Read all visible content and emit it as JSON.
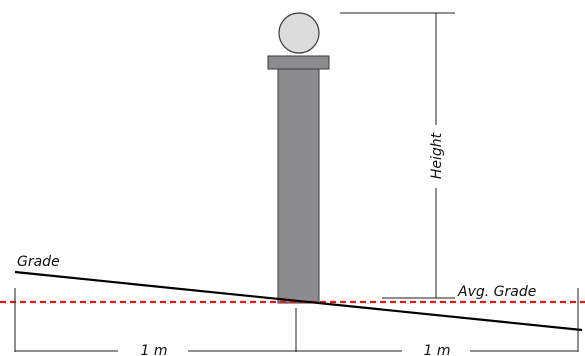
{
  "diagram": {
    "labels": {
      "grade": "Grade",
      "height": "Height",
      "avg_grade": "Avg. Grade",
      "left_distance": "1 m",
      "right_distance": "1 m"
    },
    "colors": {
      "post_fill": "#8c8b8e",
      "post_stroke": "#3a3a3a",
      "ball_fill": "#dcdcdc",
      "grade_line": "#000000",
      "avg_grade_line": "#e01b1b",
      "dimension_line": "#222222"
    }
  }
}
